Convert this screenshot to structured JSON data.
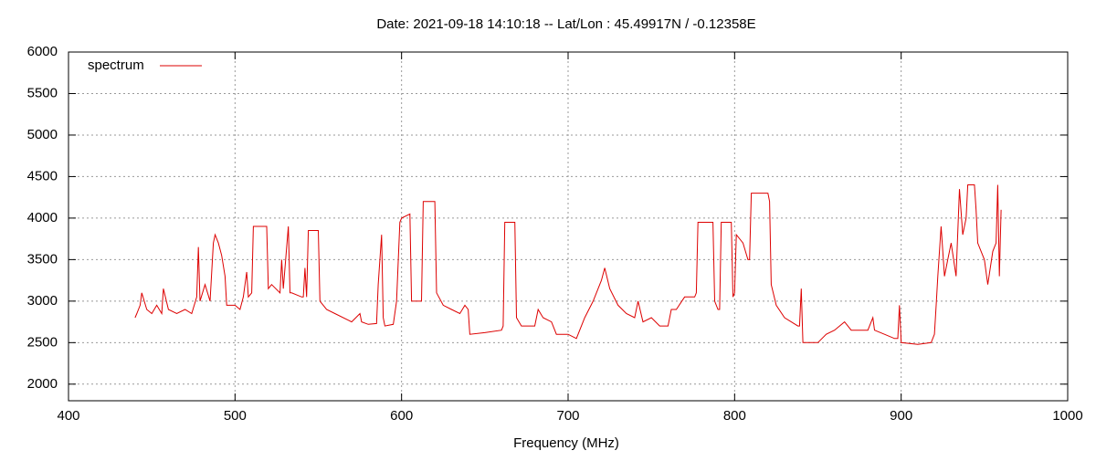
{
  "chart_data": {
    "type": "line",
    "title": "Date: 2021-09-18 14:10:18  --  Lat/Lon : 45.49917N / -0.12358E",
    "xlabel": "Frequency (MHz)",
    "x": [
      440,
      441,
      443,
      444,
      447,
      450,
      453,
      456,
      457,
      460,
      465,
      470,
      474,
      477,
      478,
      479,
      482,
      485,
      487,
      488,
      490,
      492,
      494,
      495,
      500,
      503,
      505,
      507,
      508,
      510,
      511,
      515,
      519,
      520,
      522,
      527,
      528,
      529,
      532,
      533,
      534,
      540,
      541,
      542,
      543,
      544,
      550,
      551,
      555,
      560,
      570,
      575,
      576,
      580,
      585,
      586,
      588,
      589,
      590,
      595,
      597,
      599,
      600,
      605,
      606,
      612,
      613,
      620,
      621,
      625,
      630,
      635,
      638,
      640,
      641,
      650,
      660,
      661,
      662,
      668,
      669,
      672,
      680,
      682,
      685,
      690,
      693,
      700,
      705,
      710,
      715,
      720,
      722,
      725,
      730,
      735,
      740,
      742,
      745,
      750,
      755,
      760,
      762,
      765,
      770,
      776,
      777,
      778,
      787,
      788,
      790,
      791,
      792,
      798,
      799,
      800,
      801,
      805,
      808,
      809,
      810,
      820,
      821,
      822,
      825,
      830,
      838,
      839,
      840,
      841,
      842,
      850,
      855,
      860,
      866,
      870,
      880,
      883,
      884,
      890,
      896,
      898,
      899,
      900,
      910,
      918,
      920,
      921,
      922,
      924,
      926,
      928,
      930,
      933,
      935,
      937,
      939,
      940,
      944,
      945,
      946,
      950,
      952,
      955,
      957,
      958,
      959,
      960
    ],
    "series": [
      {
        "name": "spectrum",
        "color": "#dd0000",
        "values": [
          2800,
          2850,
          2950,
          3100,
          2900,
          2850,
          2950,
          2850,
          3150,
          2900,
          2850,
          2900,
          2850,
          3050,
          3650,
          3000,
          3200,
          3000,
          3700,
          3800,
          3700,
          3550,
          3300,
          2950,
          2950,
          2900,
          3050,
          3350,
          3050,
          3100,
          3900,
          3900,
          3900,
          3150,
          3200,
          3100,
          3500,
          3150,
          3900,
          3100,
          3100,
          3050,
          3050,
          3400,
          3050,
          3850,
          3850,
          3000,
          2900,
          2850,
          2750,
          2850,
          2750,
          2720,
          2730,
          3200,
          3800,
          2800,
          2700,
          2720,
          3000,
          3950,
          4000,
          4050,
          3000,
          3000,
          4200,
          4200,
          3100,
          2950,
          2900,
          2850,
          2950,
          2900,
          2600,
          2620,
          2650,
          2700,
          3950,
          3950,
          2800,
          2700,
          2700,
          2900,
          2800,
          2750,
          2600,
          2600,
          2550,
          2800,
          3000,
          3250,
          3400,
          3150,
          2950,
          2850,
          2800,
          3000,
          2750,
          2800,
          2700,
          2700,
          2900,
          2900,
          3050,
          3050,
          3100,
          3950,
          3950,
          3000,
          2900,
          2900,
          3950,
          3950,
          3050,
          3100,
          3800,
          3700,
          3500,
          3500,
          4300,
          4300,
          4200,
          3200,
          2950,
          2800,
          2700,
          2700,
          3150,
          2500,
          2500,
          2500,
          2600,
          2650,
          2750,
          2650,
          2650,
          2800,
          2650,
          2600,
          2550,
          2550,
          2950,
          2500,
          2480,
          2500,
          2600,
          2950,
          3300,
          3900,
          3300,
          3500,
          3700,
          3300,
          4350,
          3800,
          4000,
          4400,
          4400,
          4100,
          3700,
          3500,
          3200,
          3600,
          3700,
          4400,
          3300,
          4100
        ]
      }
    ],
    "xlim": [
      400,
      1000
    ],
    "xticks": [
      400,
      500,
      600,
      700,
      800,
      900,
      1000
    ],
    "ylim": [
      1800,
      6000
    ],
    "yticks": [
      2000,
      2500,
      3000,
      3500,
      4000,
      4500,
      5000,
      5500,
      6000
    ],
    "grid": true,
    "legend": "top left"
  }
}
